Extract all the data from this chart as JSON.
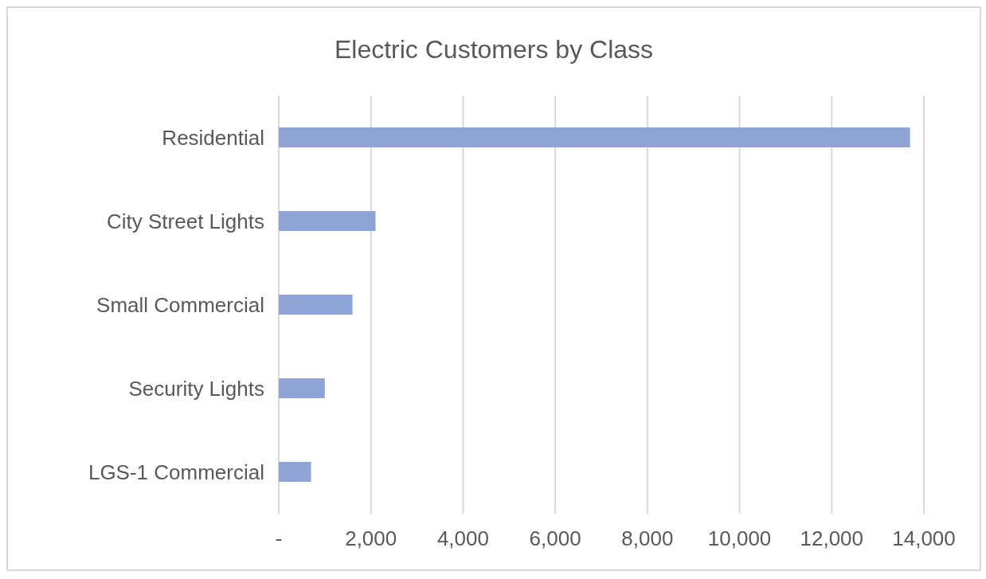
{
  "chart_data": {
    "type": "bar",
    "orientation": "horizontal",
    "title": "Electric Customers by Class",
    "categories": [
      "Residential",
      "City Street Lights",
      "Small Commercial",
      "Security Lights",
      "LGS-1 Commercial"
    ],
    "values": [
      13700,
      2100,
      1600,
      1000,
      700
    ],
    "color": "#8fa4d6",
    "xlim": [
      0,
      14000
    ],
    "xticks": [
      {
        "value": 0,
        "label": "-"
      },
      {
        "value": 2000,
        "label": "2,000"
      },
      {
        "value": 4000,
        "label": "4,000"
      },
      {
        "value": 6000,
        "label": "6,000"
      },
      {
        "value": 8000,
        "label": "8,000"
      },
      {
        "value": 10000,
        "label": "10,000"
      },
      {
        "value": 12000,
        "label": "12,000"
      },
      {
        "value": 14000,
        "label": "14,000"
      }
    ],
    "grid": "x"
  }
}
